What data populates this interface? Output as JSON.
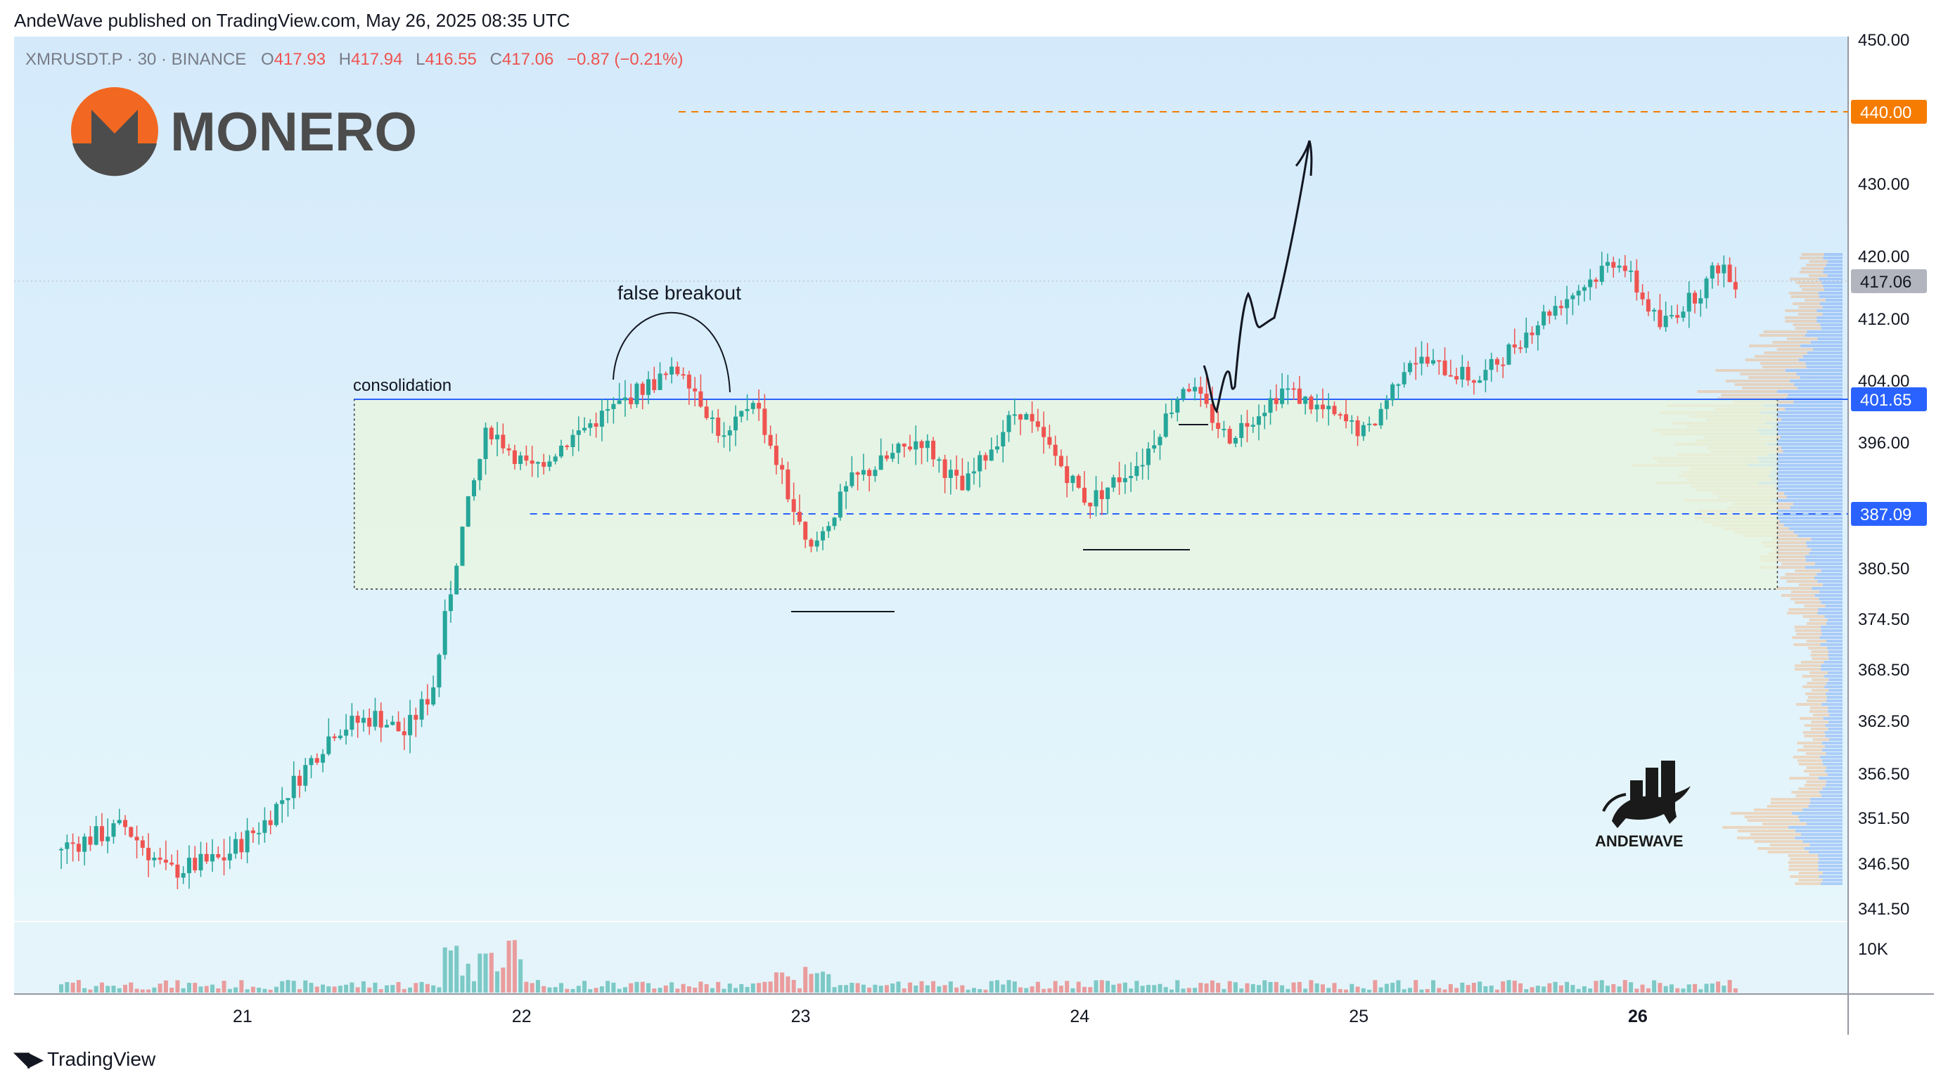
{
  "header": {
    "published": "AndeWave published on TradingView.com, May 26, 2025 08:35 UTC"
  },
  "legend": {
    "symbol": "XMRUSDT.P · 30 · BINANCE",
    "o_label": "O",
    "o_value": "417.93",
    "h_label": "H",
    "h_value": "417.94",
    "l_label": "L",
    "l_value": "416.55",
    "c_label": "C",
    "c_value": "417.06",
    "change": "−0.87 (−0.21%)"
  },
  "logo": {
    "text": "MONERO"
  },
  "watermark": {
    "text": "ANDEWAVE"
  },
  "footer": {
    "brand_text": "TradingView"
  },
  "annotations": {
    "false_breakout": "false breakout",
    "consolidation": "consolidation"
  },
  "colors": {
    "up": "#26a69a",
    "down": "#ef5350",
    "consolidation_line": "#2962ff",
    "target_line": "#f57c00",
    "price_tag_current": "#b2b5be",
    "monero_orange": "#f26822",
    "monero_gray": "#4c4c4c"
  },
  "icons": {
    "monero_logo": "monero-logo-icon",
    "andewave_bull": "andewave-bull-icon",
    "tradingview_logo": "tradingview-logo-icon"
  },
  "chart_data": {
    "type": "candlestick",
    "symbol": "XMRUSDT.P",
    "interval": "30",
    "exchange": "BINANCE",
    "x_ticks": [
      "21",
      "22",
      "23",
      "24",
      "25",
      "26"
    ],
    "y_ticks": [
      "450.00",
      "430.00",
      "420.00",
      "412.00",
      "404.00",
      "396.00",
      "380.50",
      "374.50",
      "368.50",
      "362.50",
      "356.50",
      "351.50",
      "346.50",
      "341.50"
    ],
    "volume_tick": "10K",
    "price_labels": [
      {
        "value": "440.00",
        "kind": "target"
      },
      {
        "value": "417.06",
        "kind": "current"
      },
      {
        "value": "401.65",
        "kind": "level"
      },
      {
        "value": "387.09",
        "kind": "level"
      }
    ],
    "levels": {
      "target": 440.0,
      "consolidation_top": 401.65,
      "consolidation_mid": 387.09,
      "consolidation_bottom": 378.0,
      "current": 417.06
    },
    "price_path": [
      {
        "day": 20.35,
        "price": 348.0
      },
      {
        "day": 20.6,
        "price": 350.5
      },
      {
        "day": 20.75,
        "price": 345.5
      },
      {
        "day": 20.95,
        "price": 347.0
      },
      {
        "day": 21.1,
        "price": 351.0
      },
      {
        "day": 21.35,
        "price": 361.5
      },
      {
        "day": 21.5,
        "price": 363.0
      },
      {
        "day": 21.6,
        "price": 361.0
      },
      {
        "day": 21.7,
        "price": 366.0
      },
      {
        "day": 21.8,
        "price": 384.0
      },
      {
        "day": 21.9,
        "price": 398.0
      },
      {
        "day": 22.05,
        "price": 392.5
      },
      {
        "day": 22.25,
        "price": 398.0
      },
      {
        "day": 22.45,
        "price": 403.0
      },
      {
        "day": 22.6,
        "price": 405.5
      },
      {
        "day": 22.75,
        "price": 396.0
      },
      {
        "day": 22.85,
        "price": 402.0
      },
      {
        "day": 23.05,
        "price": 382.0
      },
      {
        "day": 23.2,
        "price": 391.0
      },
      {
        "day": 23.45,
        "price": 396.5
      },
      {
        "day": 23.6,
        "price": 390.0
      },
      {
        "day": 23.8,
        "price": 400.5
      },
      {
        "day": 24.05,
        "price": 388.5
      },
      {
        "day": 24.25,
        "price": 394.0
      },
      {
        "day": 24.4,
        "price": 404.0
      },
      {
        "day": 24.55,
        "price": 396.5
      },
      {
        "day": 24.75,
        "price": 403.0
      },
      {
        "day": 25.05,
        "price": 397.0
      },
      {
        "day": 25.2,
        "price": 407.0
      },
      {
        "day": 25.45,
        "price": 404.0
      },
      {
        "day": 25.7,
        "price": 413.0
      },
      {
        "day": 25.95,
        "price": 420.0
      },
      {
        "day": 26.1,
        "price": 411.0
      },
      {
        "day": 26.25,
        "price": 416.0
      },
      {
        "day": 26.32,
        "price": 419.5
      },
      {
        "day": 26.35,
        "price": 417.06
      }
    ]
  }
}
